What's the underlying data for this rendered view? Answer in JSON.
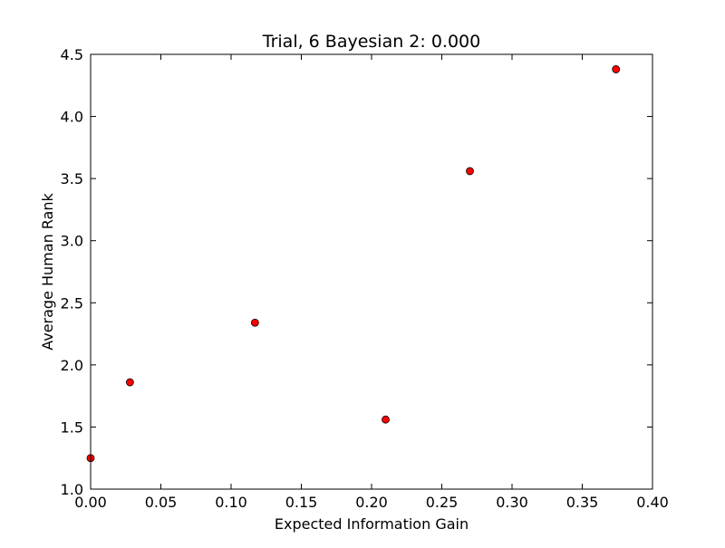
{
  "chart_data": {
    "type": "scatter",
    "title": "Trial, 6 Bayesian 2: 0.000",
    "xlabel": "Expected Information Gain",
    "ylabel": "Average Human Rank",
    "xlim": [
      0.0,
      0.4
    ],
    "ylim": [
      1.0,
      4.5
    ],
    "xticks": [
      0.0,
      0.05,
      0.1,
      0.15,
      0.2,
      0.25,
      0.3,
      0.35,
      0.4
    ],
    "xtick_labels": [
      "0.00",
      "0.05",
      "0.10",
      "0.15",
      "0.20",
      "0.25",
      "0.30",
      "0.35",
      "0.40"
    ],
    "yticks": [
      1.0,
      1.5,
      2.0,
      2.5,
      3.0,
      3.5,
      4.0,
      4.5
    ],
    "ytick_labels": [
      "1.0",
      "1.5",
      "2.0",
      "2.5",
      "3.0",
      "3.5",
      "4.0",
      "4.5"
    ],
    "grid": false,
    "marker_color": "#ff0000",
    "marker_edge_color": "#000000",
    "points": [
      {
        "x": 0.0,
        "y": 1.25
      },
      {
        "x": 0.028,
        "y": 1.86
      },
      {
        "x": 0.117,
        "y": 2.34
      },
      {
        "x": 0.21,
        "y": 1.56
      },
      {
        "x": 0.27,
        "y": 3.56
      },
      {
        "x": 0.374,
        "y": 4.38
      }
    ]
  }
}
